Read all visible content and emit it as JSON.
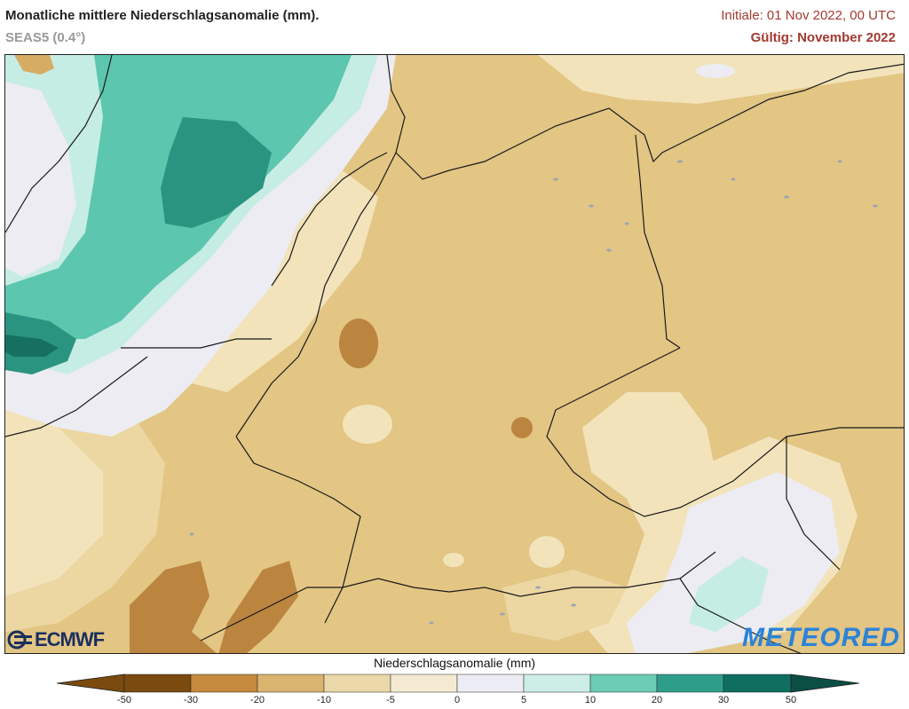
{
  "header": {
    "title": "Monatliche mittlere Niederschlagsanomalie (mm).",
    "subtitle": "SEAS5 (0.4°)",
    "initial": "Initiale: 01 Nov 2022, 00 UTC",
    "valid": "Gültig: November 2022"
  },
  "logos": {
    "left": "ECMWF",
    "right": "METEORED"
  },
  "legend": {
    "title": "Niederschlagsanomalie (mm)",
    "ticks": [
      "-50",
      "-30",
      "-20",
      "-10",
      "-5",
      "0",
      "5",
      "10",
      "20",
      "30",
      "50"
    ],
    "colors": [
      "#7a4a0f",
      "#c58a3e",
      "#d9b46e",
      "#ead8a8",
      "#f4ead2",
      "#ececf4",
      "#cdeee6",
      "#6cccb6",
      "#2e9e8a",
      "#0f6e5f",
      "#0a4e44"
    ]
  },
  "palette": {
    "land_base": "#e3c584",
    "dry_strong": "#bb8540",
    "dry_medium": "#d6ac63",
    "dry_light": "#f2e3bb",
    "neutral": "#ececf2",
    "wet_light": "#c6ede4",
    "wet_medium": "#5dc6ae",
    "wet_strong": "#2a9480",
    "wet_very_strong": "#16705f"
  }
}
